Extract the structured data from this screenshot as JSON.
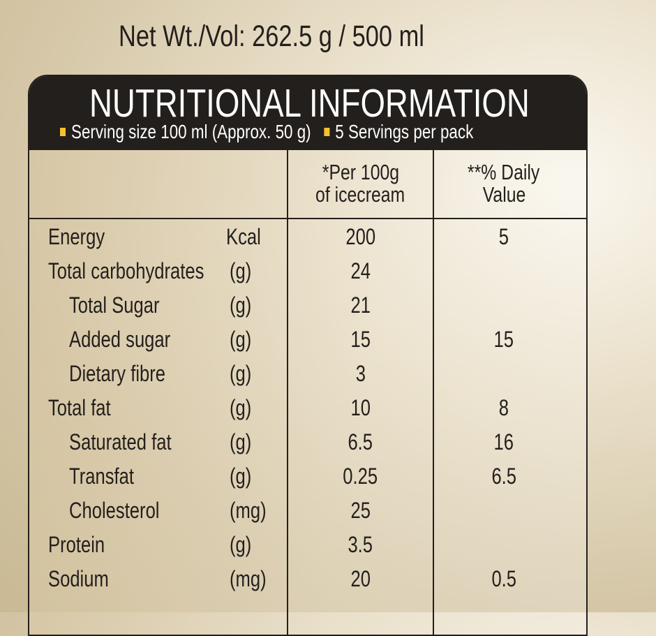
{
  "net_weight": "Net Wt./Vol: 262.5 g / 500 ml",
  "title": "NUTRITIONAL INFORMATION",
  "serving_size": "Serving size 100 ml (Approx. 50 g)",
  "servings_per_pack": "5 Servings per pack",
  "accent_color": "#f2c230",
  "columns": {
    "per100_line1": "*Per 100g",
    "per100_line2": "of icecream",
    "dv_line1": "**% Daily",
    "dv_line2": "Value"
  },
  "rows": [
    {
      "name": "Energy",
      "unit": "Kcal",
      "value": "200",
      "dv": "5",
      "indent": false
    },
    {
      "name": "Total carbohydrates",
      "unit": "(g)",
      "value": "24",
      "dv": "",
      "indent": false
    },
    {
      "name": "Total Sugar",
      "unit": "(g)",
      "value": "21",
      "dv": "",
      "indent": true
    },
    {
      "name": "Added sugar",
      "unit": "(g)",
      "value": "15",
      "dv": "15",
      "indent": true
    },
    {
      "name": "Dietary fibre",
      "unit": "(g)",
      "value": "3",
      "dv": "",
      "indent": true
    },
    {
      "name": "Total fat",
      "unit": "(g)",
      "value": "10",
      "dv": "8",
      "indent": false
    },
    {
      "name": "Saturated fat",
      "unit": "(g)",
      "value": "6.5",
      "dv": "16",
      "indent": true
    },
    {
      "name": "Transfat",
      "unit": "(g)",
      "value": "0.25",
      "dv": "6.5",
      "indent": true
    },
    {
      "name": "Cholesterol",
      "unit": "(mg)",
      "value": "25",
      "dv": "",
      "indent": true
    },
    {
      "name": "Protein",
      "unit": "(g)",
      "value": "3.5",
      "dv": "",
      "indent": false
    },
    {
      "name": "Sodium",
      "unit": "(mg)",
      "value": "20",
      "dv": "0.5",
      "indent": false
    }
  ]
}
